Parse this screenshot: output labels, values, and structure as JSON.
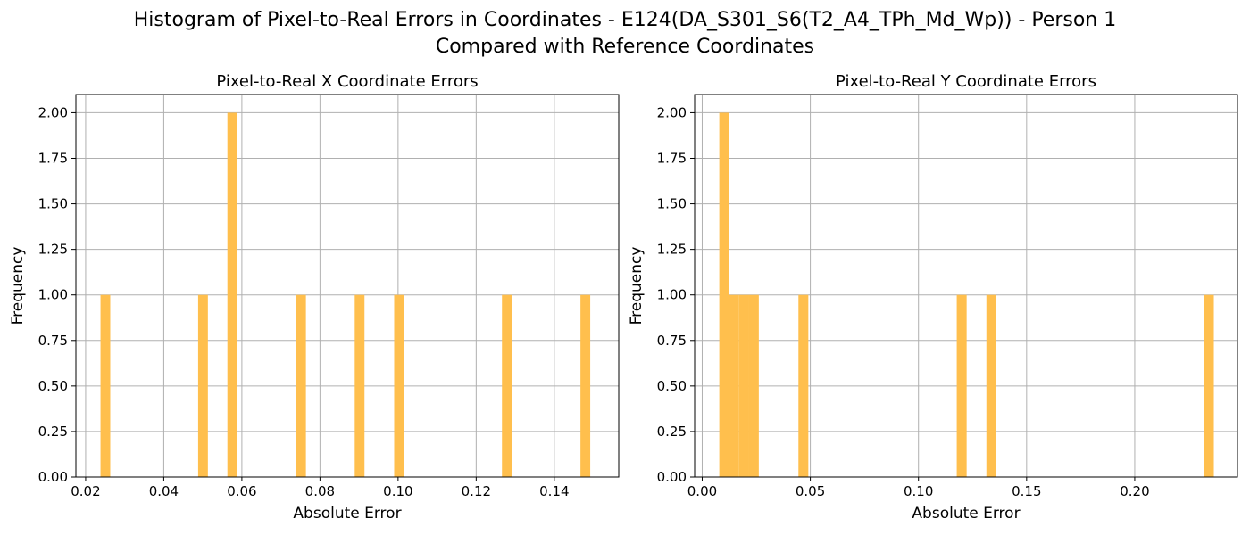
{
  "figure": {
    "title_line1": "Histogram of Pixel-to-Real Errors in Coordinates - E124(DA_S301_S6(T2_A4_TPh_Md_Wp)) - Person 1",
    "title_line2": "Compared with Reference Coordinates"
  },
  "colors": {
    "bar": "#ffbf4d",
    "grid": "#b0b0b0",
    "axis": "#000000"
  },
  "chart_data": [
    {
      "type": "bar",
      "title": "Pixel-to-Real X Coordinate Errors",
      "xlabel": "Absolute Error",
      "ylabel": "Frequency",
      "xlim": [
        0.0175,
        0.1565
      ],
      "ylim": [
        0,
        2.1
      ],
      "xticks": [
        0.02,
        0.04,
        0.06,
        0.08,
        0.1,
        0.12,
        0.14
      ],
      "xtick_labels": [
        "0.02",
        "0.04",
        "0.06",
        "0.08",
        "0.10",
        "0.12",
        "0.14"
      ],
      "yticks": [
        0,
        0.25,
        0.5,
        0.75,
        1.0,
        1.25,
        1.5,
        1.75,
        2.0
      ],
      "ytick_labels": [
        "0.00",
        "0.25",
        "0.50",
        "0.75",
        "1.00",
        "1.25",
        "1.50",
        "1.75",
        "2.00"
      ],
      "grid": true,
      "bin_width": 0.0025,
      "bins": [
        {
          "x0": 0.0238,
          "count": 1
        },
        {
          "x0": 0.0488,
          "count": 1
        },
        {
          "x0": 0.0563,
          "count": 2
        },
        {
          "x0": 0.0739,
          "count": 1
        },
        {
          "x0": 0.0889,
          "count": 1
        },
        {
          "x0": 0.099,
          "count": 1
        },
        {
          "x0": 0.1266,
          "count": 1
        },
        {
          "x0": 0.1467,
          "count": 1
        }
      ]
    },
    {
      "type": "bar",
      "title": "Pixel-to-Real Y Coordinate Errors",
      "xlabel": "Absolute Error",
      "ylabel": "Frequency",
      "xlim": [
        -0.0035,
        0.2475
      ],
      "ylim": [
        0,
        2.1
      ],
      "xticks": [
        0.0,
        0.05,
        0.1,
        0.15,
        0.2
      ],
      "xtick_labels": [
        "0.00",
        "0.05",
        "0.10",
        "0.15",
        "0.20"
      ],
      "yticks": [
        0,
        0.25,
        0.5,
        0.75,
        1.0,
        1.25,
        1.5,
        1.75,
        2.0
      ],
      "ytick_labels": [
        "0.00",
        "0.25",
        "0.50",
        "0.75",
        "1.00",
        "1.25",
        "1.50",
        "1.75",
        "2.00"
      ],
      "grid": true,
      "bin_width": 0.00457,
      "bins": [
        {
          "x0": 0.0079,
          "count": 2
        },
        {
          "x0": 0.0125,
          "count": 1
        },
        {
          "x0": 0.0171,
          "count": 1
        },
        {
          "x0": 0.0216,
          "count": 1
        },
        {
          "x0": 0.0445,
          "count": 1
        },
        {
          "x0": 0.1177,
          "count": 1
        },
        {
          "x0": 0.1314,
          "count": 1
        },
        {
          "x0": 0.232,
          "count": 1
        }
      ]
    }
  ]
}
